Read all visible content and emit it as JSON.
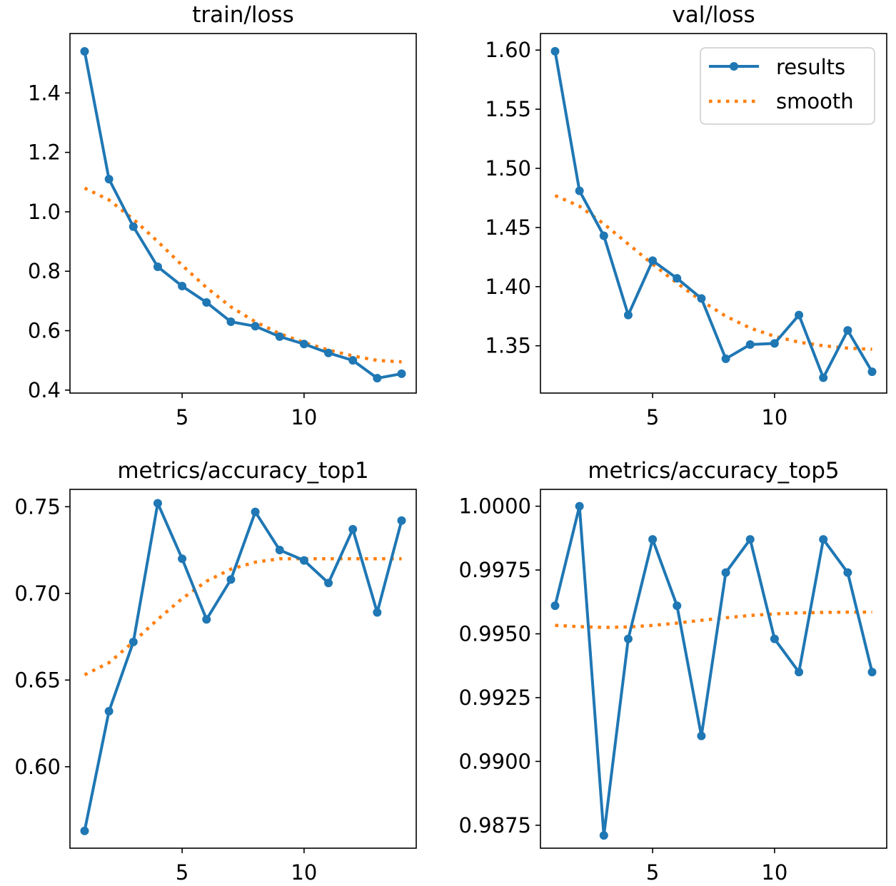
{
  "colors": {
    "results": "#1f77b4",
    "smooth": "#ff7f0e",
    "axes": "#000000",
    "background": "#ffffff"
  },
  "legend": {
    "results": "results",
    "smooth": "smooth",
    "location": "upper right of val/loss panel"
  },
  "chart_data": [
    {
      "type": "line",
      "title": "train/loss",
      "xlabel": "",
      "ylabel": "",
      "xlim": [
        0.4,
        14.6
      ],
      "ylim": [
        0.39,
        1.6
      ],
      "xticks": [
        5,
        10
      ],
      "xtick_labels": [
        "5",
        "10"
      ],
      "yticks": [
        0.4,
        0.6,
        0.8,
        1.0,
        1.2,
        1.4
      ],
      "ytick_labels": [
        "0.4",
        "0.6",
        "0.8",
        "1.0",
        "1.2",
        "1.4"
      ],
      "x": [
        1,
        2,
        3,
        4,
        5,
        6,
        7,
        8,
        9,
        10,
        11,
        12,
        13,
        14
      ],
      "series": [
        {
          "name": "results",
          "style": "solid-marker",
          "values": [
            1.54,
            1.11,
            0.95,
            0.815,
            0.75,
            0.695,
            0.63,
            0.615,
            0.58,
            0.555,
            0.525,
            0.5,
            0.44,
            0.455
          ]
        },
        {
          "name": "smooth",
          "style": "dotted",
          "values": [
            1.08,
            1.04,
            0.975,
            0.9,
            0.82,
            0.745,
            0.68,
            0.63,
            0.59,
            0.56,
            0.535,
            0.515,
            0.5,
            0.495
          ]
        }
      ],
      "legend": false
    },
    {
      "type": "line",
      "title": "val/loss",
      "xlabel": "",
      "ylabel": "",
      "xlim": [
        0.4,
        14.6
      ],
      "ylim": [
        1.31,
        1.614
      ],
      "xticks": [
        5,
        10
      ],
      "xtick_labels": [
        "5",
        "10"
      ],
      "yticks": [
        1.35,
        1.4,
        1.45,
        1.5,
        1.55,
        1.6
      ],
      "ytick_labels": [
        "1.35",
        "1.40",
        "1.45",
        "1.50",
        "1.55",
        "1.60"
      ],
      "x": [
        1,
        2,
        3,
        4,
        5,
        6,
        7,
        8,
        9,
        10,
        11,
        12,
        13,
        14
      ],
      "series": [
        {
          "name": "results",
          "style": "solid-marker",
          "values": [
            1.599,
            1.481,
            1.443,
            1.376,
            1.422,
            1.407,
            1.39,
            1.339,
            1.351,
            1.352,
            1.376,
            1.323,
            1.363,
            1.328
          ]
        },
        {
          "name": "smooth",
          "style": "dotted",
          "values": [
            1.477,
            1.468,
            1.453,
            1.436,
            1.419,
            1.403,
            1.388,
            1.375,
            1.365,
            1.358,
            1.353,
            1.35,
            1.348,
            1.347
          ]
        }
      ],
      "legend": true
    },
    {
      "type": "line",
      "title": "metrics/accuracy_top1",
      "xlabel": "",
      "ylabel": "",
      "xlim": [
        0.4,
        14.6
      ],
      "ylim": [
        0.553,
        0.76
      ],
      "xticks": [
        5,
        10
      ],
      "xtick_labels": [
        "5",
        "10"
      ],
      "yticks": [
        0.6,
        0.65,
        0.7,
        0.75
      ],
      "ytick_labels": [
        "0.60",
        "0.65",
        "0.70",
        "0.75"
      ],
      "x": [
        1,
        2,
        3,
        4,
        5,
        6,
        7,
        8,
        9,
        10,
        11,
        12,
        13,
        14
      ],
      "series": [
        {
          "name": "results",
          "style": "solid-marker",
          "values": [
            0.563,
            0.632,
            0.672,
            0.752,
            0.72,
            0.685,
            0.708,
            0.747,
            0.725,
            0.719,
            0.706,
            0.737,
            0.689,
            0.742
          ]
        },
        {
          "name": "smooth",
          "style": "dotted",
          "values": [
            0.653,
            0.66,
            0.672,
            0.685,
            0.697,
            0.707,
            0.714,
            0.718,
            0.72,
            0.72,
            0.72,
            0.72,
            0.72,
            0.72
          ]
        }
      ],
      "legend": false
    },
    {
      "type": "line",
      "title": "metrics/accuracy_top5",
      "xlabel": "",
      "ylabel": "",
      "xlim": [
        0.4,
        14.6
      ],
      "ylim": [
        0.9866,
        1.00066
      ],
      "xticks": [
        5,
        10
      ],
      "xtick_labels": [
        "5",
        "10"
      ],
      "yticks": [
        0.9875,
        0.99,
        0.9925,
        0.995,
        0.9975,
        1.0
      ],
      "ytick_labels": [
        "0.9875",
        "0.9900",
        "0.9925",
        "0.9950",
        "0.9975",
        "1.0000"
      ],
      "x": [
        1,
        2,
        3,
        4,
        5,
        6,
        7,
        8,
        9,
        10,
        11,
        12,
        13,
        14
      ],
      "series": [
        {
          "name": "results",
          "style": "solid-marker",
          "values": [
            0.9961,
            1.0,
            0.9871,
            0.9948,
            0.9987,
            0.9961,
            0.991,
            0.9974,
            0.9987,
            0.9948,
            0.9935,
            0.9987,
            0.9974,
            0.9935
          ]
        },
        {
          "name": "smooth",
          "style": "dotted",
          "values": [
            0.99533,
            0.99528,
            0.99525,
            0.99527,
            0.99533,
            0.99542,
            0.99553,
            0.99563,
            0.99572,
            0.99578,
            0.99582,
            0.99584,
            0.99585,
            0.99585
          ]
        }
      ],
      "legend": false
    }
  ]
}
